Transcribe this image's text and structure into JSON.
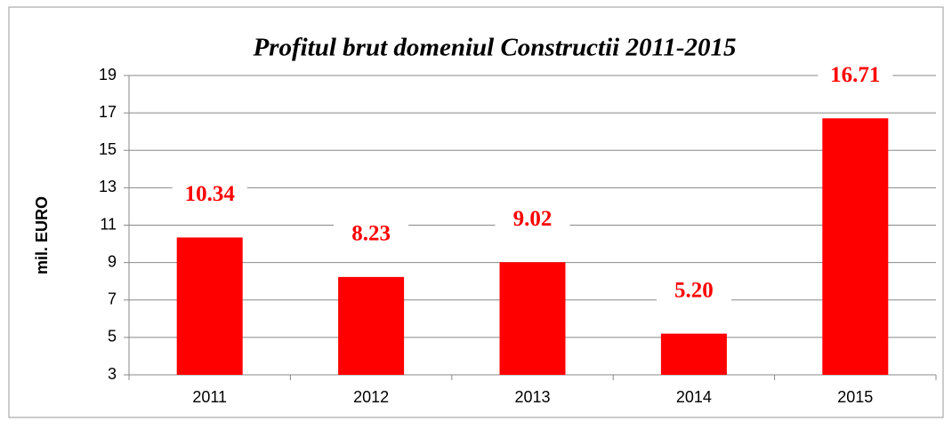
{
  "chart_data": {
    "type": "bar",
    "title": "Profitul brut domeniul Constructii 2011-2015",
    "ylabel": "mil. EURO",
    "categories": [
      "2011",
      "2012",
      "2013",
      "2014",
      "2015"
    ],
    "values": [
      10.34,
      8.23,
      9.02,
      5.2,
      16.71
    ],
    "value_labels": [
      "10.34",
      "8.23",
      "9.02",
      "5.20",
      "16.71"
    ],
    "color": "#ff0000",
    "ylim": [
      3,
      19
    ],
    "yticks": [
      3,
      5,
      7,
      9,
      11,
      13,
      15,
      17,
      19
    ],
    "grid": true
  }
}
